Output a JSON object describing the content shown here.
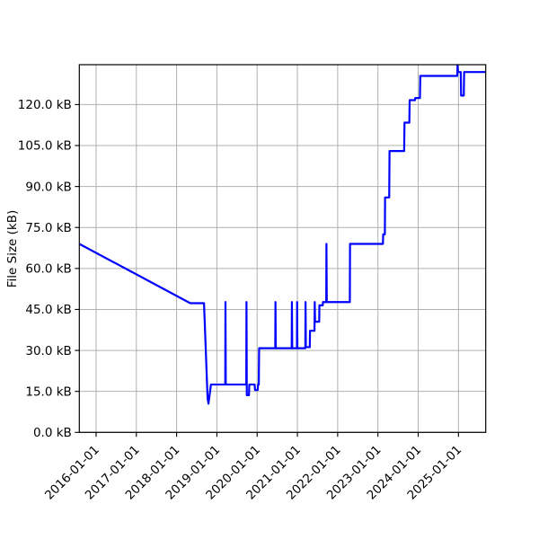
{
  "colors": {
    "background": "#ffffff",
    "line": "#0000ff",
    "grid": "#b0b0b0",
    "frame": "#000000",
    "text": "#000000"
  },
  "chart_data": {
    "type": "line",
    "title": "",
    "xlabel": "",
    "ylabel": "File Size (kB)",
    "grid": true,
    "legend": false,
    "ylim": [
      0,
      134.6
    ],
    "y_tick_values": [
      0,
      15,
      30,
      45,
      60,
      75,
      90,
      105,
      120
    ],
    "y_tick_labels": [
      "0.0 kB",
      "15.0 kB",
      "30.0 kB",
      "45.0 kB",
      "60.0 kB",
      "75.0 kB",
      "90.0 kB",
      "105.0 kB",
      "120.0 kB"
    ],
    "x_tick_years": [
      2016,
      2017,
      2018,
      2019,
      2020,
      2021,
      2022,
      2023,
      2024,
      2025
    ],
    "x_tick_labels": [
      "2016-01-01",
      "2017-01-01",
      "2018-01-01",
      "2019-01-01",
      "2020-01-01",
      "2021-01-01",
      "2022-01-01",
      "2023-01-01",
      "2024-01-01",
      "2025-01-01"
    ],
    "series": [
      {
        "name": "file_size_kb",
        "color": "#0000ff",
        "points": [
          [
            "2015-08-01",
            69.0
          ],
          [
            "2018-05-03",
            47.3
          ],
          [
            "2018-09-06",
            47.3
          ],
          [
            "2018-10-08",
            12.5
          ],
          [
            "2018-10-16",
            10.5
          ],
          [
            "2018-11-08",
            17.5
          ],
          [
            "2019-03-16",
            17.5
          ],
          [
            "2019-03-18",
            47.7
          ],
          [
            "2019-03-21",
            17.5
          ],
          [
            "2019-09-24",
            17.5
          ],
          [
            "2019-09-26",
            47.7
          ],
          [
            "2019-09-29",
            13.6
          ],
          [
            "2019-10-18",
            13.6
          ],
          [
            "2019-10-21",
            17.5
          ],
          [
            "2019-12-09",
            17.5
          ],
          [
            "2019-12-12",
            15.5
          ],
          [
            "2020-01-06",
            15.5
          ],
          [
            "2020-01-09",
            17.5
          ],
          [
            "2020-01-16",
            17.5
          ],
          [
            "2020-01-19",
            30.8
          ],
          [
            "2020-06-13",
            30.8
          ],
          [
            "2020-06-15",
            47.7
          ],
          [
            "2020-06-18",
            30.8
          ],
          [
            "2020-11-10",
            30.8
          ],
          [
            "2020-11-12",
            47.7
          ],
          [
            "2020-11-15",
            30.8
          ],
          [
            "2020-12-27",
            30.8
          ],
          [
            "2020-12-29",
            47.7
          ],
          [
            "2021-01-01",
            30.8
          ],
          [
            "2021-03-12",
            30.8
          ],
          [
            "2021-03-14",
            47.7
          ],
          [
            "2021-03-17",
            31.2
          ],
          [
            "2021-04-22",
            31.2
          ],
          [
            "2021-04-24",
            37.2
          ],
          [
            "2021-06-04",
            37.2
          ],
          [
            "2021-06-06",
            47.7
          ],
          [
            "2021-06-09",
            40.5
          ],
          [
            "2021-07-16",
            40.5
          ],
          [
            "2021-07-18",
            46.5
          ],
          [
            "2021-08-18",
            46.5
          ],
          [
            "2021-08-20",
            47.7
          ],
          [
            "2021-09-19",
            47.7
          ],
          [
            "2021-09-21",
            69.0
          ],
          [
            "2021-09-24",
            47.7
          ],
          [
            "2022-04-20",
            47.7
          ],
          [
            "2022-04-22",
            69.0
          ],
          [
            "2023-02-16",
            69.0
          ],
          [
            "2023-02-18",
            72.5
          ],
          [
            "2023-03-03",
            72.5
          ],
          [
            "2023-03-05",
            86.0
          ],
          [
            "2023-04-12",
            86.0
          ],
          [
            "2023-04-15",
            103.0
          ],
          [
            "2023-08-26",
            103.0
          ],
          [
            "2023-08-29",
            113.4
          ],
          [
            "2023-10-12",
            113.4
          ],
          [
            "2023-10-15",
            121.6
          ],
          [
            "2023-12-02",
            121.6
          ],
          [
            "2023-12-05",
            122.4
          ],
          [
            "2024-01-17",
            122.4
          ],
          [
            "2024-01-20",
            130.5
          ],
          [
            "2024-12-21",
            130.5
          ],
          [
            "2024-12-23",
            134.5
          ],
          [
            "2024-12-28",
            131.9
          ],
          [
            "2025-01-22",
            131.9
          ],
          [
            "2025-01-25",
            123.3
          ],
          [
            "2025-02-19",
            123.3
          ],
          [
            "2025-02-22",
            131.9
          ],
          [
            "2025-09-05",
            131.9
          ]
        ]
      }
    ]
  }
}
